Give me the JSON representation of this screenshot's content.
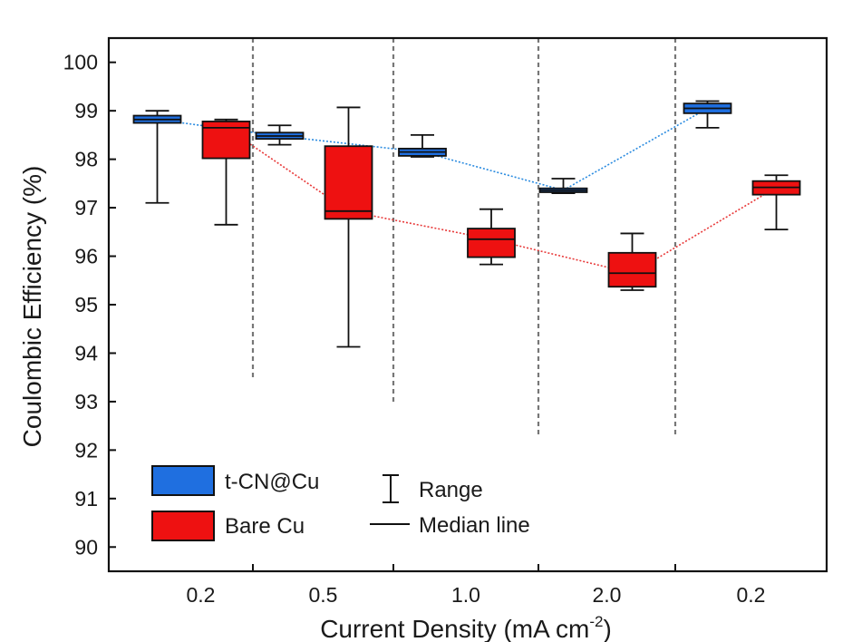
{
  "chart_data": {
    "type": "box",
    "title": "",
    "xlabel": "Current Density (mA cm",
    "xlabel_sup": "-2",
    "xlabel_close": ")",
    "ylabel": "Coulombic Efficiency (%)",
    "ylim": [
      89.5,
      100.5
    ],
    "yticks": [
      90,
      91,
      92,
      93,
      94,
      95,
      96,
      97,
      98,
      99,
      100
    ],
    "categories": [
      "0.2",
      "0.5",
      "1.0",
      "2.0",
      "0.2"
    ],
    "series": [
      {
        "name": "t-CN@Cu",
        "color": "#1f6fe0",
        "line_color": "#2a8be0",
        "boxes": [
          {
            "min": 97.1,
            "q1": 98.75,
            "median": 98.82,
            "q3": 98.9,
            "max": 99.0
          },
          {
            "min": 98.3,
            "q1": 98.42,
            "median": 98.48,
            "q3": 98.55,
            "max": 98.7
          },
          {
            "min": 98.05,
            "q1": 98.07,
            "median": 98.15,
            "q3": 98.22,
            "max": 98.5
          },
          {
            "min": 97.3,
            "q1": 97.32,
            "median": 97.36,
            "q3": 97.4,
            "max": 97.6
          },
          {
            "min": 98.65,
            "q1": 98.95,
            "median": 99.05,
            "q3": 99.15,
            "max": 99.2
          }
        ]
      },
      {
        "name": "Bare Cu",
        "color": "#ee1111",
        "line_color": "#e83a3a",
        "boxes": [
          {
            "min": 96.65,
            "q1": 98.02,
            "median": 98.65,
            "q3": 98.78,
            "max": 98.82
          },
          {
            "min": 94.13,
            "q1": 96.77,
            "median": 96.93,
            "q3": 98.27,
            "max": 99.07
          },
          {
            "min": 95.83,
            "q1": 95.98,
            "median": 96.35,
            "q3": 96.57,
            "max": 96.97
          },
          {
            "min": 95.3,
            "q1": 95.37,
            "median": 95.65,
            "q3": 96.07,
            "max": 96.47
          },
          {
            "min": 96.55,
            "q1": 97.27,
            "median": 97.42,
            "q3": 97.55,
            "max": 97.67
          }
        ]
      }
    ],
    "legend": {
      "position": "bottom-left",
      "entries": [
        "t-CN@Cu",
        "Bare Cu"
      ],
      "range_label": "Range",
      "median_label": "Median line"
    },
    "grid": false
  }
}
